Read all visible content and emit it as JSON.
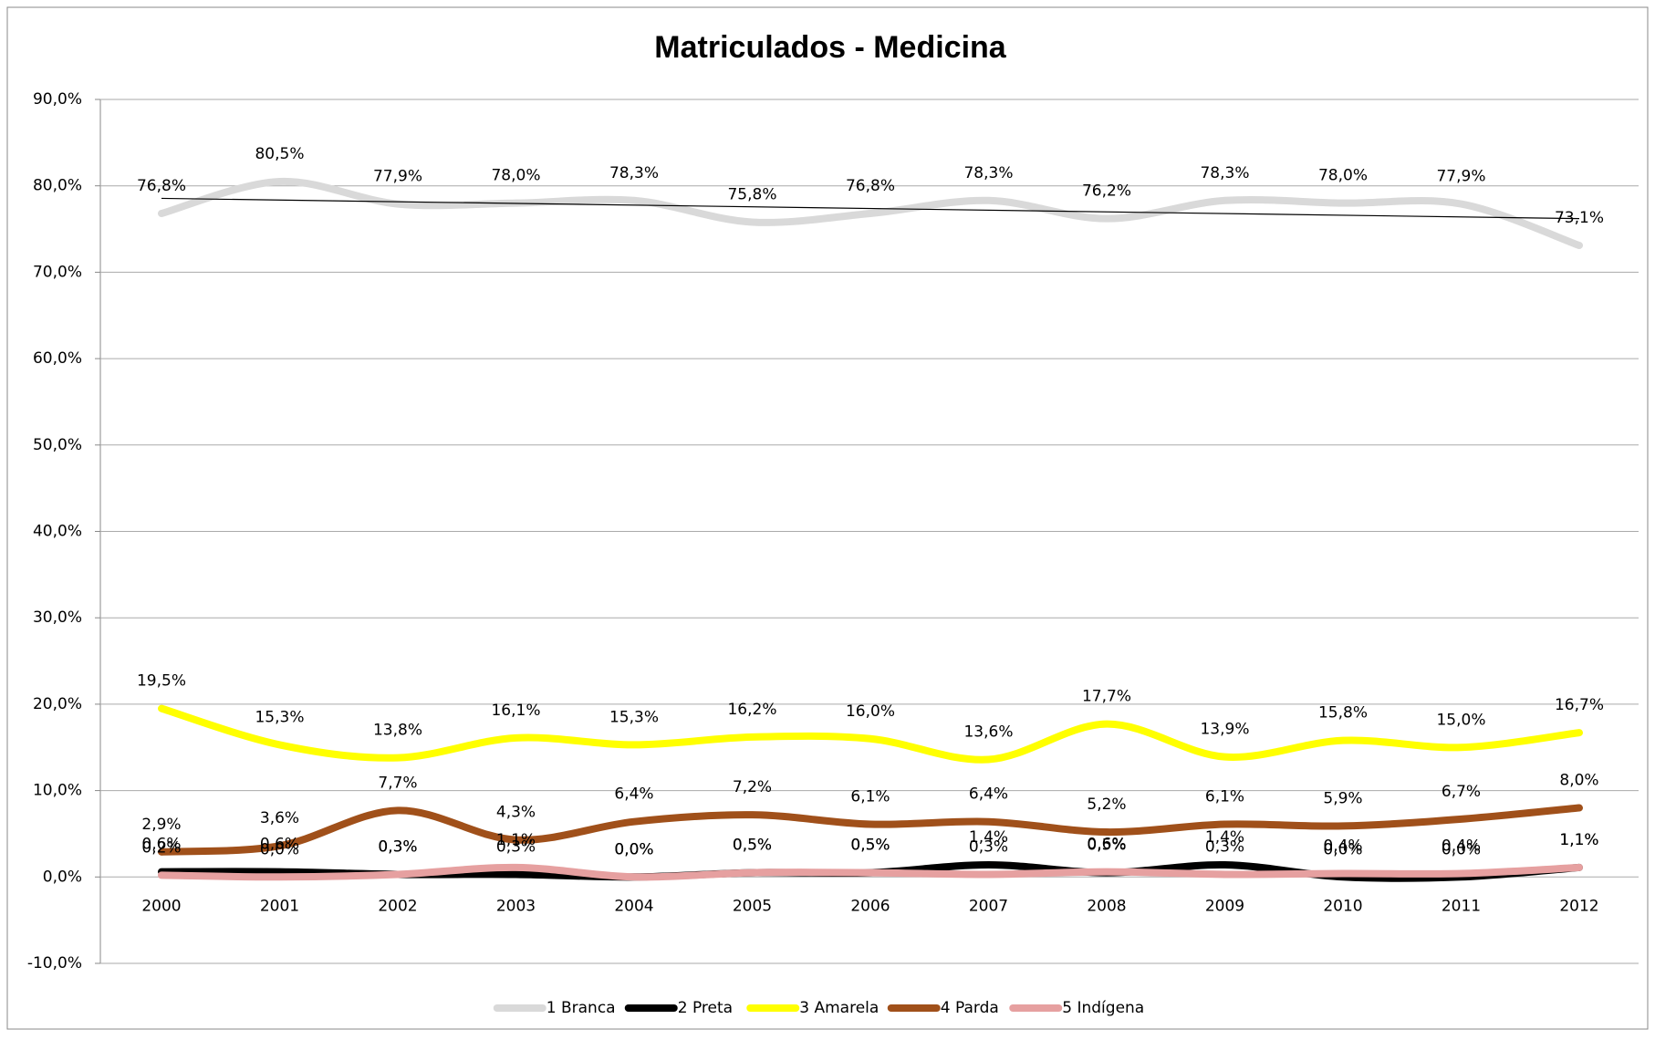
{
  "chart_data": {
    "type": "line",
    "title": "Matriculados - Medicina",
    "categories": [
      "2000",
      "2001",
      "2002",
      "2003",
      "2004",
      "2005",
      "2006",
      "2007",
      "2008",
      "2009",
      "2010",
      "2011",
      "2012"
    ],
    "series": [
      {
        "name": "1 Branca",
        "color": "#d9d9d9",
        "trendline": true,
        "values": [
          76.8,
          80.5,
          77.9,
          78.0,
          78.3,
          75.8,
          76.8,
          78.3,
          76.2,
          78.3,
          78.0,
          77.9,
          73.1
        ],
        "value_labels": [
          "76,8%",
          "80,5%",
          "77,9%",
          "78,0%",
          "78,3%",
          "75,8%",
          "76,8%",
          "78,3%",
          "76,2%",
          "78,3%",
          "78,0%",
          "77,9%",
          "73,1%"
        ]
      },
      {
        "name": "2 Preta",
        "color": "#000000",
        "values": [
          0.6,
          0.6,
          0.3,
          0.3,
          0.0,
          0.5,
          0.5,
          1.4,
          0.5,
          1.4,
          0.0,
          0.0,
          1.1
        ],
        "value_labels": [
          "0,6%",
          "0,6%",
          "0,3%",
          "0,3%",
          "0,0%",
          "0,5%",
          "0,5%",
          "1,4%",
          "0,5%",
          "1,4%",
          "0,0%",
          "0,0%",
          "1,1%"
        ]
      },
      {
        "name": "3 Amarela",
        "color": "#ffff00",
        "values": [
          19.5,
          15.3,
          13.8,
          16.1,
          15.3,
          16.2,
          16.0,
          13.6,
          17.7,
          13.9,
          15.8,
          15.0,
          16.7
        ],
        "value_labels": [
          "19,5%",
          "15,3%",
          "13,8%",
          "16,1%",
          "15,3%",
          "16,2%",
          "16,0%",
          "13,6%",
          "17,7%",
          "13,9%",
          "15,8%",
          "15,0%",
          "16,7%"
        ]
      },
      {
        "name": "4 Parda",
        "color": "#a0501a",
        "values": [
          2.9,
          3.6,
          7.7,
          4.3,
          6.4,
          7.2,
          6.1,
          6.4,
          5.2,
          6.1,
          5.9,
          6.7,
          8.0
        ],
        "value_labels": [
          "2,9%",
          "3,6%",
          "7,7%",
          "4,3%",
          "6,4%",
          "7,2%",
          "6,1%",
          "6,4%",
          "5,2%",
          "6,1%",
          "5,9%",
          "6,7%",
          "8,0%"
        ]
      },
      {
        "name": "5 Indígena",
        "color": "#e6a0a0",
        "values": [
          0.2,
          0.0,
          0.3,
          1.1,
          0.0,
          0.5,
          0.5,
          0.3,
          0.6,
          0.3,
          0.4,
          0.4,
          1.1
        ],
        "value_labels": [
          "0,2%",
          "0,0%",
          "0,3%",
          "1,1%",
          "0,0%",
          "0,5%",
          "0,5%",
          "0,3%",
          "0,6%",
          "0,3%",
          "0,4%",
          "0,4%",
          "1,1%"
        ]
      }
    ],
    "ylim": [
      -10,
      90
    ],
    "yticks": [
      {
        "value": -10,
        "label": "-10,0%"
      },
      {
        "value": 0,
        "label": "0,0%"
      },
      {
        "value": 10,
        "label": "10,0%"
      },
      {
        "value": 20,
        "label": "20,0%"
      },
      {
        "value": 30,
        "label": "30,0%"
      },
      {
        "value": 40,
        "label": "40,0%"
      },
      {
        "value": 50,
        "label": "50,0%"
      },
      {
        "value": 60,
        "label": "60,0%"
      },
      {
        "value": 70,
        "label": "70,0%"
      },
      {
        "value": 80,
        "label": "80,0%"
      },
      {
        "value": 90,
        "label": "90,0%"
      }
    ],
    "grid": true,
    "smooth": true,
    "legend": "bottom"
  }
}
